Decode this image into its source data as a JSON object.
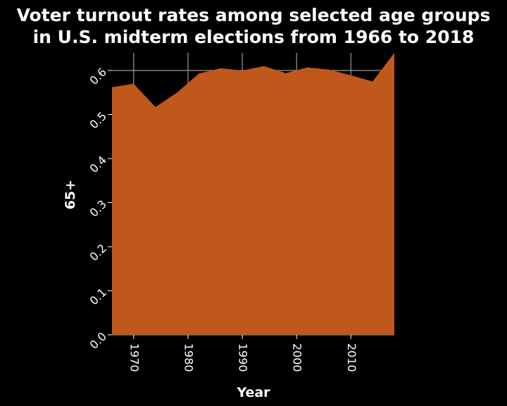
{
  "chart_data": {
    "type": "area",
    "title_lines": [
      "Voter turnout rates among selected age groups",
      "in U.S. midterm elections from 1966 to 2018"
    ],
    "xlabel": "Year",
    "ylabel": "65+",
    "xlim": [
      1966,
      2018
    ],
    "ylim": [
      0.0,
      0.64
    ],
    "xticks": [
      1970,
      1980,
      1990,
      2000,
      2010
    ],
    "yticks": [
      0.0,
      0.1,
      0.2,
      0.3,
      0.4,
      0.5,
      0.6
    ],
    "ytick_labels": [
      "0.0",
      "0.1",
      "0.2",
      "0.3",
      "0.4",
      "0.5",
      "0.6"
    ],
    "grid": true,
    "colors": {
      "fill": "#c0581c",
      "background": "#000000",
      "grid": "#999999",
      "text": "#ffffff"
    },
    "series": [
      {
        "x": [
          1966,
          1970,
          1974,
          1978,
          1982,
          1986,
          1990,
          1994,
          1998,
          2002,
          2006,
          2010,
          2014,
          2018
        ],
        "values": [
          0.562,
          0.57,
          0.517,
          0.55,
          0.593,
          0.605,
          0.6,
          0.61,
          0.594,
          0.607,
          0.602,
          0.589,
          0.575,
          0.64
        ]
      }
    ]
  }
}
